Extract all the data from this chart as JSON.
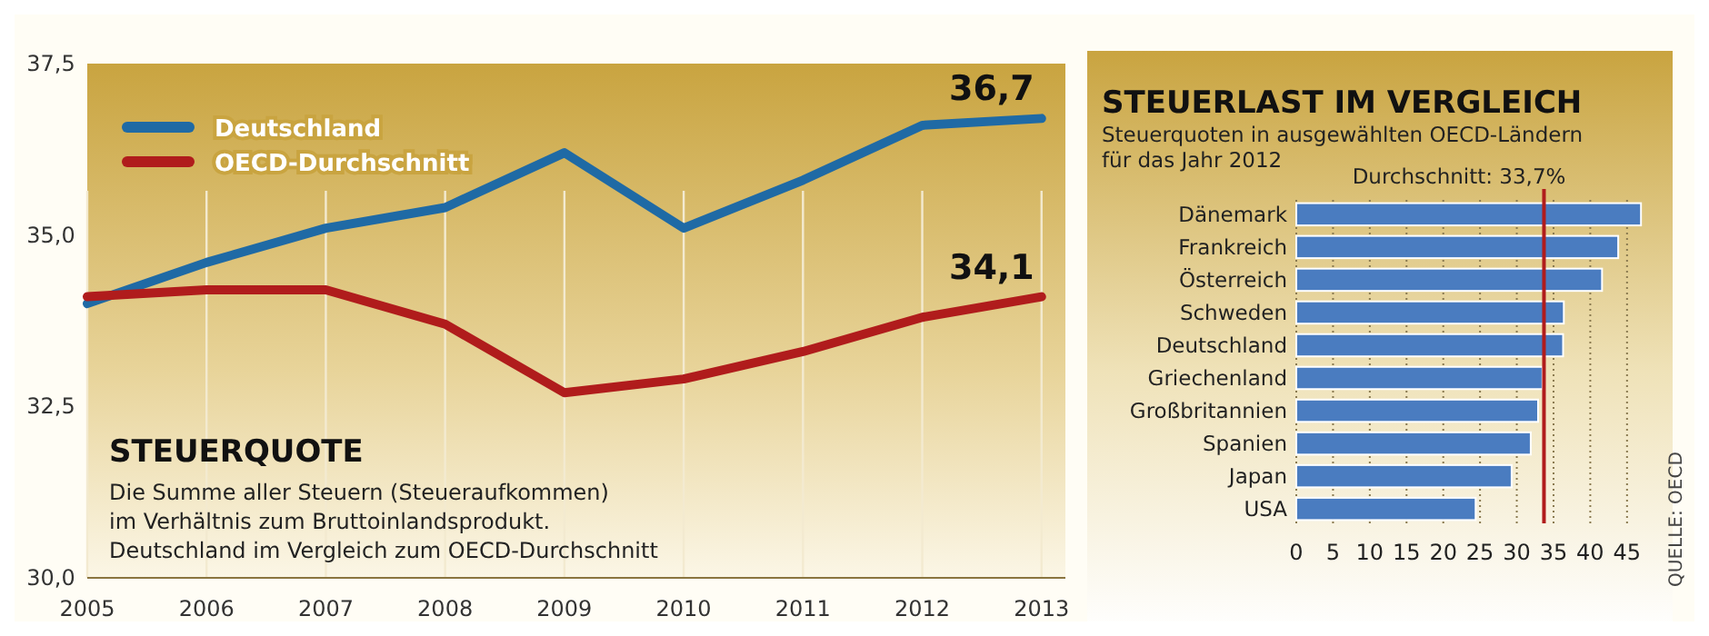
{
  "chart_data": [
    {
      "type": "line",
      "title": "STEUERQUOTE",
      "subtitle": "Die Summe aller Steuern (Steueraufkommen)\nim Verhältnis zum Bruttoinlandsprodukt.\nDeutschland im Vergleich zum OECD-Durchschnitt",
      "x": [
        2005,
        2006,
        2007,
        2008,
        2009,
        2010,
        2011,
        2012,
        2013
      ],
      "series": [
        {
          "name": "Deutschland",
          "color": "#1f6aa5",
          "values": [
            34.0,
            34.6,
            35.1,
            35.4,
            36.2,
            35.1,
            35.8,
            36.6,
            36.7
          ]
        },
        {
          "name": "OECD-Durchschnitt",
          "color": "#b01c1c",
          "values": [
            34.1,
            34.2,
            34.2,
            33.7,
            32.7,
            32.9,
            33.3,
            33.8,
            34.1
          ]
        }
      ],
      "xlim": [
        2005,
        2013.2
      ],
      "xticks": [
        2005,
        2006,
        2007,
        2008,
        2009,
        2010,
        2011,
        2012,
        2013
      ],
      "ylim": [
        30,
        37.5
      ],
      "yticks": [
        {
          "value": 30,
          "label": "30,0"
        },
        {
          "value": 32.5,
          "label": "32,5"
        },
        {
          "value": 35,
          "label": "35,0"
        },
        {
          "value": 37.5,
          "label": "37,5"
        }
      ],
      "grid": "x",
      "legend": "top left",
      "line_style": "solid",
      "annotations": [
        {
          "text": "36,7",
          "x": 2013,
          "y": 36.7
        },
        {
          "text": "34,1",
          "x": 2013,
          "y": 34.1
        }
      ]
    },
    {
      "type": "bar",
      "orientation": "horizontal",
      "title": "STEUERLAST IM VERGLEICH",
      "subtitle": "Steuerquoten in ausgewählten OECD-Ländern\nfür das Jahr 2012",
      "categories": [
        "Dänemark",
        "Frankreich",
        "Österreich",
        "Schweden",
        "Deutschland",
        "Griechenland",
        "Großbritannien",
        "Spanien",
        "Japan",
        "USA"
      ],
      "values": [
        46.9,
        43.8,
        41.6,
        36.4,
        36.3,
        33.5,
        32.9,
        31.9,
        29.3,
        24.4
      ],
      "color": "#4a7cc0",
      "xlim": [
        0,
        47
      ],
      "xticks": [
        0,
        5,
        10,
        15,
        20,
        25,
        30,
        35,
        40,
        45
      ],
      "grid": "x",
      "ref_lines": [
        {
          "axis": "x",
          "value": 33.7,
          "label": "Durchschnitt: 33,7%",
          "color": "#b01c1c"
        }
      ],
      "annotations": [
        "QUELLE: OECD"
      ]
    }
  ]
}
